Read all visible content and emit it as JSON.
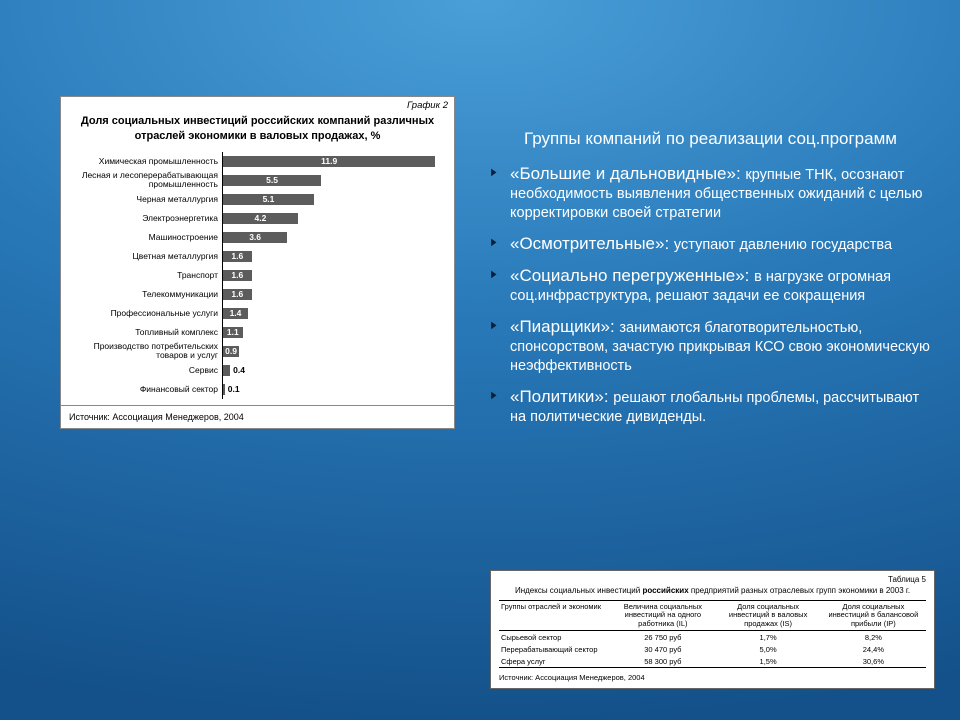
{
  "chart": {
    "type": "bar-horizontal",
    "caption": "График 2",
    "title": "Доля социальных инвестиций российских компаний различных отраслей экономики в валовых продажах, %",
    "bar_color": "#5c5c5c",
    "value_text_color": "#ffffff",
    "background_color": "#ffffff",
    "axis_color": "#000000",
    "x_max": 12.5,
    "categories": [
      {
        "label": "Химическая промышленность",
        "value": 11.9,
        "display": "11.9",
        "value_inside": true
      },
      {
        "label": "Лесная и лесоперерабатывающая промышленность",
        "value": 5.5,
        "display": "5.5",
        "value_inside": true
      },
      {
        "label": "Черная металлургия",
        "value": 5.1,
        "display": "5.1",
        "value_inside": true
      },
      {
        "label": "Электроэнергетика",
        "value": 4.2,
        "display": "4.2",
        "value_inside": true
      },
      {
        "label": "Машиностроение",
        "value": 3.6,
        "display": "3.6",
        "value_inside": true
      },
      {
        "label": "Цветная металлургия",
        "value": 1.6,
        "display": "1.6",
        "value_inside": true
      },
      {
        "label": "Транспорт",
        "value": 1.6,
        "display": "1.6",
        "value_inside": true
      },
      {
        "label": "Телекоммуникации",
        "value": 1.6,
        "display": "1.6",
        "value_inside": true
      },
      {
        "label": "Профессиональные услуги",
        "value": 1.4,
        "display": "1.4",
        "value_inside": true
      },
      {
        "label": "Топливный комплекс",
        "value": 1.1,
        "display": "1.1",
        "value_inside": true
      },
      {
        "label": "Производство потребительских товаров и услуг",
        "value": 0.9,
        "display": "0.9",
        "value_inside": true
      },
      {
        "label": "Сервис",
        "value": 0.4,
        "display": "0.4",
        "value_inside": false
      },
      {
        "label": "Финансовый сектор",
        "value": 0.1,
        "display": "0.1",
        "value_inside": false
      }
    ],
    "footer": "Источник: Ассоциация Менеджеров, 2004"
  },
  "rhs": {
    "title": "Группы компаний по реализации соц.программ",
    "items": [
      {
        "term": "«Большие и дальновидные»: ",
        "desc": "крупные ТНК, осознают необходимость выявления общественных ожиданий с целью корректировки своей стратегии"
      },
      {
        "term": "«Осмотрительные»: ",
        "desc": "уступают давлению государства"
      },
      {
        "term": "«Социально перегруженные»: ",
        "desc": "в нагрузке огромная соц.инфраструктура, решают задачи ее сокращения"
      },
      {
        "term": "«Пиарщики»: ",
        "desc": "занимаются благотворительностью, спонсорством, зачастую прикрывая КСО свою экономическую неэффективность"
      },
      {
        "term": "«Политики»: ",
        "desc": "решают глобальны проблемы, рассчитывают на политические дивиденды."
      }
    ]
  },
  "table": {
    "caption": "Таблица 5",
    "title_prefix": "Индексы социальных инвестиций ",
    "title_bold": "российских",
    "title_suffix": " предприятий разных отраслевых групп экономики в 2003 г.",
    "columns": [
      "Группы отраслей и экономик",
      "Величина социальных инвестиций на одного работника (IL)",
      "Доля социальных инвестиций в валовых продажах (IS)",
      "Доля социальных инвестиций в балансовой прибыли (IP)"
    ],
    "rows": [
      [
        "Сырьевой сектор",
        "26 750 руб",
        "1,7%",
        "8,2%"
      ],
      [
        "Перерабатывающий сектор",
        "30 470 руб",
        "5,0%",
        "24,4%"
      ],
      [
        "Сфера услуг",
        "58 300 руб",
        "1,5%",
        "30,6%"
      ]
    ],
    "footer": "Источник: Ассоциация Менеджеров, 2004"
  }
}
